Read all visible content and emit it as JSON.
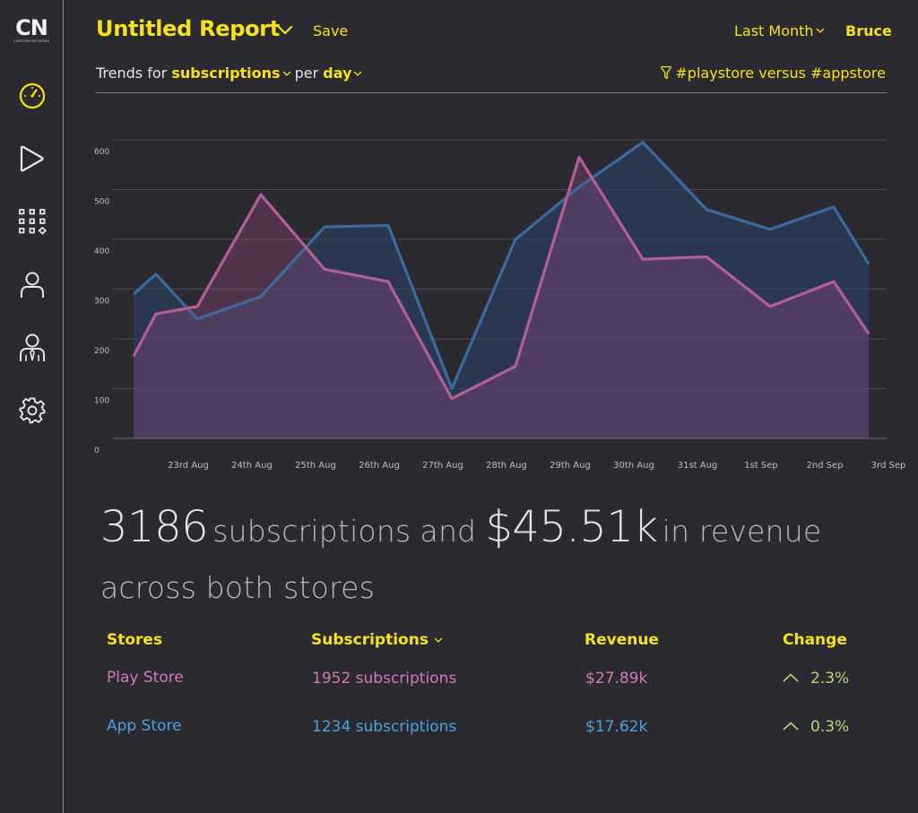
{
  "brand": {
    "logo_text": "CN",
    "logo_subtext": "CARTOON NETWORK"
  },
  "sidebar": {
    "items": [
      {
        "icon": "dashboard-icon",
        "active": true
      },
      {
        "icon": "play-icon",
        "active": false
      },
      {
        "icon": "apps-grid-icon",
        "active": false
      },
      {
        "icon": "user-icon",
        "active": false
      },
      {
        "icon": "team-user-icon",
        "active": false
      },
      {
        "icon": "gear-icon",
        "active": false
      }
    ]
  },
  "header": {
    "title": "Untitled Report",
    "save_label": "Save",
    "date_range": "Last Month",
    "user": "Bruce"
  },
  "trend": {
    "prefix": "Trends for",
    "metric": "subscriptions",
    "per": "per",
    "interval": "day",
    "filter": "#playstore versus #appstore"
  },
  "chart_data": {
    "type": "area",
    "categories": [
      "23rd Aug",
      "24th Aug",
      "25th Aug",
      "26th Aug",
      "27th Aug",
      "28th Aug",
      "29th Aug",
      "30th Aug",
      "31st Aug",
      "1st Sep",
      "2nd Sep",
      "3rd Sep"
    ],
    "x": [
      0,
      0.35,
      1.0,
      2.0,
      3.0,
      4.0,
      5.0,
      6.0,
      7.0,
      8.0,
      9.0,
      10.0,
      11.0,
      11.55
    ],
    "series": [
      {
        "key": "appstore",
        "values": [
          290,
          330,
          240,
          285,
          425,
          428,
          100,
          400,
          505,
          595,
          460,
          420,
          465,
          350
        ],
        "color": "#3a5f8c"
      },
      {
        "key": "playstore",
        "values": [
          165,
          250,
          265,
          490,
          340,
          315,
          80,
          145,
          565,
          360,
          365,
          265,
          315,
          210
        ],
        "color": "#b0558f"
      }
    ],
    "yticks": [
      0,
      100,
      200,
      300,
      400,
      500,
      600
    ],
    "ylim": [
      0,
      600
    ],
    "grid": true,
    "legend": "none"
  },
  "summary": {
    "subscriptions_value": "3186",
    "subscriptions_label": "subscriptions",
    "and": "and",
    "revenue_value": "$45.51k",
    "revenue_label": "in revenue",
    "line2": "across both stores"
  },
  "table": {
    "headers": {
      "stores": "Stores",
      "subscriptions": "Subscriptions",
      "revenue": "Revenue",
      "change": "Change"
    },
    "rows": [
      {
        "store": "Play Store",
        "subscriptions": "1952 subscriptions",
        "revenue": "$27.89k",
        "change": "2.3%",
        "color": "#d07ab8"
      },
      {
        "store": "App Store",
        "subscriptions": "1234 subscriptions",
        "revenue": "$17.62k",
        "change": "0.3%",
        "color": "#4aa3dc"
      }
    ]
  },
  "colors": {
    "accent": "#f5e21b",
    "background": "#2b2a31",
    "positive": "#b5d77a"
  }
}
